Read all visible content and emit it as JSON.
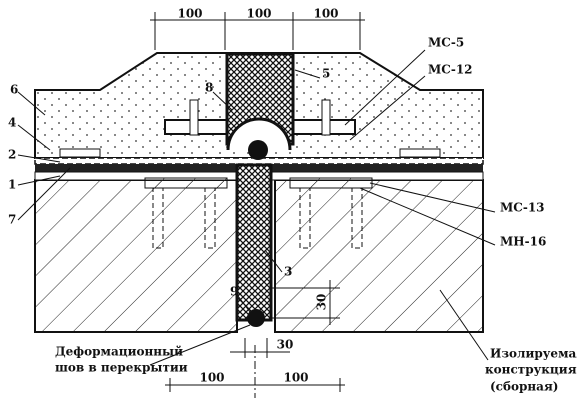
{
  "dimensions": {
    "top": [
      100,
      100,
      100
    ],
    "right": 30,
    "bottom_gap": 30,
    "bottom": [
      100,
      100
    ]
  },
  "callouts": {
    "left": [
      "6",
      "4",
      "2",
      "1",
      "7"
    ],
    "inner": [
      "8",
      "5",
      "3",
      "9"
    ],
    "right": [
      "МС-5",
      "МС-12",
      "МС-13",
      "МН-16"
    ]
  },
  "notes": {
    "joint": [
      "Деформационный",
      "шов в перекрытии"
    ],
    "structure": [
      "Изолируемая",
      "конструкция",
      "(сборная)"
    ]
  }
}
